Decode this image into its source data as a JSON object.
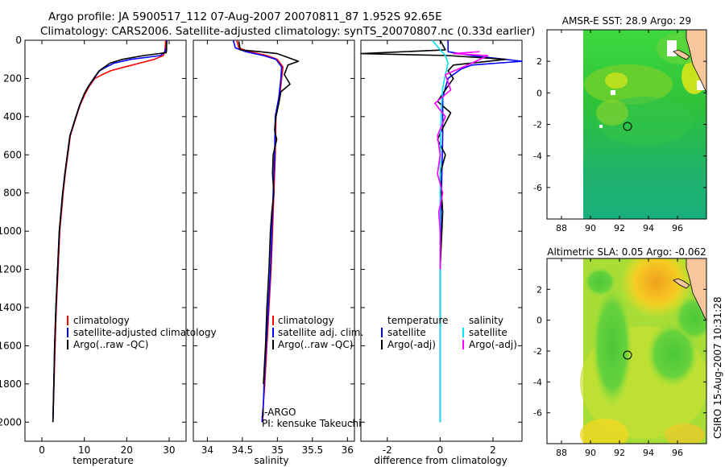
{
  "header": {
    "line1": "Argo profile: JA 5900517_112 07-Aug-2007 20070811_87 1.952S 92.65E",
    "line2": "Climatology: CARS2006. Satellite-adjusted climatology: synTS_20070807.nc (0.33d earlier)"
  },
  "colors": {
    "climatology": "#ff0000",
    "satellite": "#0000ff",
    "argo": "#000000",
    "salinity_satellite": "#00e5ee",
    "salinity_argo": "#ff00ff"
  },
  "footer": {
    "stamp": "CSIRO 15-Aug-2007 10:31:28"
  },
  "chart_data": [
    {
      "type": "line",
      "name": "temperature-profile",
      "xlabel": "temperature",
      "ylabel": "",
      "xlim": [
        -4,
        34
      ],
      "ylim": [
        2100,
        0
      ],
      "xticks": [
        0,
        10,
        20,
        30
      ],
      "yticks": [
        0,
        200,
        400,
        600,
        800,
        1000,
        1200,
        1400,
        1600,
        1800,
        2000
      ],
      "legend": [
        "climatology",
        "satellite-adjusted climatology",
        "Argo(..raw -QC)"
      ],
      "legend_position": "lower-left",
      "series": [
        {
          "name": "climatology",
          "color": "#ff0000",
          "x": [
            29.2,
            29.0,
            28.6,
            26.5,
            23.0,
            19.5,
            16.2,
            14.2,
            12.5,
            11.2,
            10.2,
            9.0,
            8.1,
            7.4,
            6.7,
            6.1,
            5.5,
            5.0,
            4.6,
            4.2,
            3.8,
            3.4,
            3.1,
            2.85,
            2.6
          ],
          "y": [
            0,
            60,
            80,
            100,
            120,
            140,
            160,
            180,
            200,
            240,
            280,
            340,
            400,
            450,
            500,
            600,
            700,
            800,
            900,
            1000,
            1200,
            1400,
            1600,
            1800,
            2000
          ]
        },
        {
          "name": "satellite-adjusted climatology",
          "color": "#0000ff",
          "x": [
            29.5,
            29.3,
            29.0,
            28.0,
            21.0,
            17.0,
            15.2,
            13.6,
            12.3,
            11.0,
            10.0,
            8.9,
            8.0,
            7.3,
            6.6,
            6.0,
            5.4,
            4.9,
            4.5,
            4.1,
            3.7,
            3.3,
            3.0,
            2.8,
            2.6
          ],
          "y": [
            0,
            40,
            60,
            80,
            100,
            120,
            140,
            160,
            200,
            240,
            280,
            340,
            400,
            450,
            500,
            600,
            700,
            800,
            900,
            1000,
            1200,
            1400,
            1600,
            1800,
            2000
          ]
        },
        {
          "name": "Argo(..raw -QC)",
          "color": "#000000",
          "x": [
            29.4,
            29.4,
            29.3,
            24.0,
            19.0,
            16.0,
            14.8,
            13.5,
            12.2,
            11.0,
            10.0,
            8.9,
            8.0,
            7.3,
            6.6,
            6.0,
            5.4,
            4.9,
            4.5,
            4.1,
            3.7,
            3.3,
            3.0,
            2.8,
            2.6
          ],
          "y": [
            5,
            50,
            65,
            80,
            100,
            120,
            140,
            160,
            200,
            240,
            280,
            340,
            400,
            450,
            500,
            600,
            700,
            800,
            900,
            1000,
            1200,
            1400,
            1600,
            1800,
            2000
          ]
        }
      ]
    },
    {
      "type": "line",
      "name": "salinity-profile",
      "xlabel": "salinity",
      "xlim": [
        33.8,
        36.1
      ],
      "ylim": [
        2100,
        0
      ],
      "xticks": [
        34,
        34.5,
        35,
        35.5,
        36
      ],
      "legend": [
        "climatology",
        "satellite adj. clim.",
        "Argo(..raw -QC)"
      ],
      "legend_position": "lower-left",
      "series": [
        {
          "name": "climatology",
          "color": "#ff0000",
          "x": [
            34.42,
            34.45,
            34.6,
            34.85,
            35.0,
            35.08,
            35.06,
            35.03,
            34.98,
            34.97,
            34.95,
            34.93,
            34.91,
            34.88,
            34.85,
            34.82,
            34.8,
            34.79
          ],
          "y": [
            0,
            40,
            60,
            80,
            100,
            140,
            200,
            300,
            400,
            600,
            800,
            1000,
            1200,
            1400,
            1600,
            1800,
            1900,
            2000
          ]
        },
        {
          "name": "satellite adj. clim.",
          "color": "#0000ff",
          "x": [
            34.37,
            34.4,
            34.55,
            34.8,
            34.98,
            35.06,
            35.05,
            35.02,
            34.97,
            34.96,
            34.94,
            34.92,
            34.9,
            34.87,
            34.84,
            34.81,
            34.8,
            34.78
          ],
          "y": [
            0,
            40,
            60,
            80,
            100,
            140,
            200,
            300,
            400,
            600,
            800,
            1000,
            1200,
            1400,
            1600,
            1800,
            1900,
            2000
          ]
        },
        {
          "name": "Argo(..raw -QC)",
          "color": "#000000",
          "x": [
            34.45,
            34.47,
            34.75,
            35.0,
            35.3,
            35.15,
            35.1,
            35.18,
            35.05,
            35.02,
            34.98,
            34.96,
            34.99,
            34.94,
            34.93,
            34.95,
            34.92,
            34.9,
            34.88,
            34.85,
            34.83,
            34.8
          ],
          "y": [
            5,
            50,
            60,
            70,
            110,
            130,
            180,
            230,
            270,
            330,
            400,
            470,
            520,
            600,
            700,
            800,
            900,
            1000,
            1200,
            1400,
            1600,
            1800
          ]
        }
      ],
      "annotations": [
        "J-ARGO",
        "PI: kensuke Takeuchi"
      ]
    },
    {
      "type": "line",
      "name": "difference-profile",
      "xlabel": "difference from climatology",
      "xlim": [
        -3,
        3.1
      ],
      "ylim": [
        2100,
        0
      ],
      "xticks": [
        -2,
        0,
        2
      ],
      "legend": [
        "temperature",
        "satellite",
        "Argo(-adj)",
        "salinity",
        "satellite",
        "Argo(-adj)"
      ],
      "legend_position": "lower-center",
      "series": [
        {
          "name": "temperature satellite",
          "color": "#0000ff",
          "x": [
            0.3,
            0.3,
            1.2,
            3.1,
            1.2,
            0.8,
            0.3,
            0.1,
            0.1,
            0.05,
            0.0,
            0.0,
            0.0
          ],
          "y": [
            0,
            60,
            80,
            110,
            130,
            150,
            200,
            300,
            500,
            800,
            1200,
            1600,
            2000
          ]
        },
        {
          "name": "temperature Argo(-adj)",
          "color": "#000000",
          "x": [
            0.0,
            0.2,
            -3.0,
            0.3,
            2.5,
            0.5,
            0.3,
            0.5,
            0.2,
            -0.1,
            0.4,
            0.1,
            -0.1,
            0.2,
            0.0,
            0.1,
            0.0,
            0.0
          ],
          "y": [
            0,
            50,
            70,
            80,
            100,
            130,
            160,
            200,
            260,
            320,
            380,
            460,
            520,
            600,
            700,
            900,
            1200,
            1500
          ]
        },
        {
          "name": "salinity satellite",
          "color": "#00e5ee",
          "x": [
            -0.3,
            0.0,
            0.2,
            0.3,
            0.2,
            0.1,
            0.05,
            0.02,
            0.0,
            0.0,
            0.0,
            0.0,
            0.0
          ],
          "y": [
            0,
            50,
            80,
            120,
            180,
            250,
            350,
            500,
            700,
            1000,
            1400,
            1800,
            2000
          ]
        },
        {
          "name": "salinity Argo(-adj)",
          "color": "#ff00ff",
          "x": [
            1.5,
            0.5,
            1.8,
            1.2,
            0.2,
            0.4,
            -0.2,
            0.2,
            -0.1,
            0.0,
            -0.1,
            0.1,
            -0.05,
            0.0,
            0.0
          ],
          "y": [
            60,
            70,
            80,
            120,
            180,
            260,
            330,
            400,
            500,
            600,
            700,
            800,
            900,
            1000,
            1200
          ]
        }
      ]
    },
    {
      "type": "heatmap",
      "name": "sst-map",
      "title": "AMSR-E SST: 28.9  Argo: 29",
      "xlim": [
        87,
        98
      ],
      "ylim": [
        -8,
        4
      ],
      "xticks": [
        88,
        90,
        92,
        94,
        96
      ],
      "yticks": [
        -6,
        -4,
        -2,
        0,
        2
      ],
      "data_extent_x": [
        90,
        98
      ],
      "marker": {
        "lon": 92.65,
        "lat": -1.952
      }
    },
    {
      "type": "heatmap",
      "name": "sla-map",
      "title": "Altimetric SLA: 0.05  Argo: -0.062",
      "xlim": [
        87,
        98
      ],
      "ylim": [
        -8,
        4
      ],
      "xticks": [
        88,
        90,
        92,
        94,
        96
      ],
      "yticks": [
        -6,
        -4,
        -2,
        0,
        2
      ],
      "data_extent_x": [
        90,
        98
      ],
      "marker": {
        "lon": 92.65,
        "lat": -1.952
      }
    }
  ]
}
